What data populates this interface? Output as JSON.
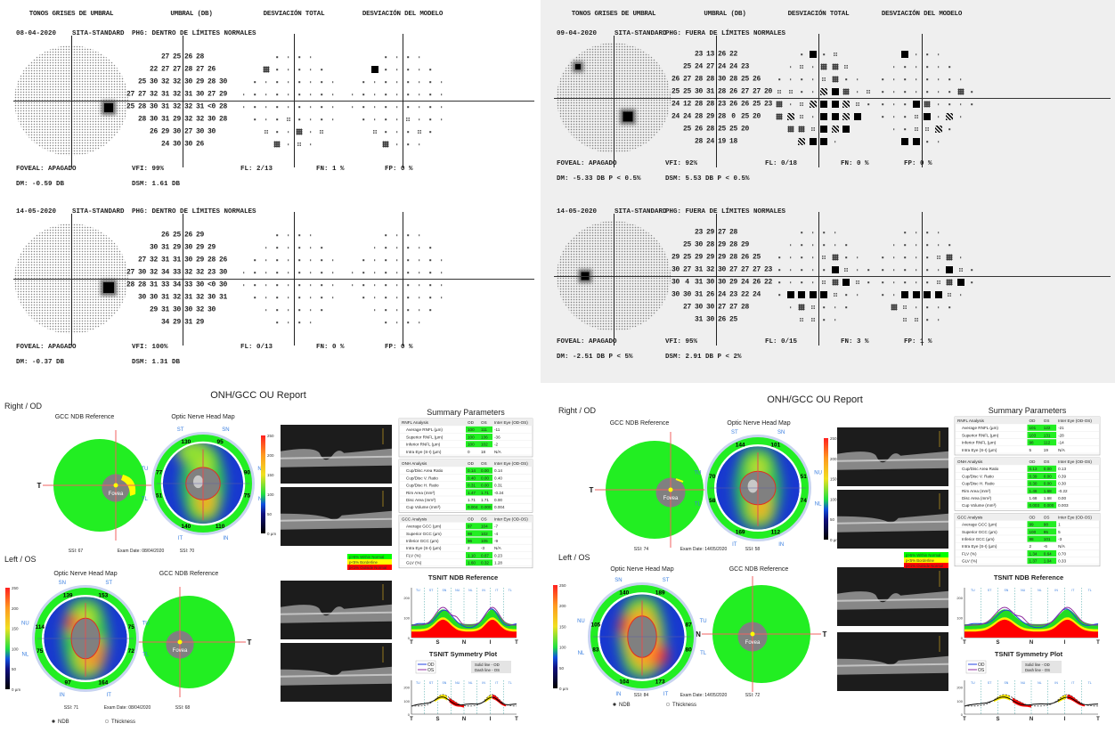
{
  "vf": [
    {
      "headers": {
        "greyscale": "TONOS GRISES DE UMBRAL",
        "threshold": "UMBRAL (DB)",
        "total_dev": "DESVIACIÓN TOTAL",
        "pattern_dev": "DESVIACIÓN DEL MODELO"
      },
      "tests": [
        {
          "date": "08-04-2020",
          "strategy": "SITA-STANDARD",
          "phg": "PHG: DENTRO DE LÍMITES NORMALES",
          "thresholds": [
            [
              "27",
              "25",
              "26",
              "28"
            ],
            [
              "22",
              "27",
              "27",
              "28",
              "27",
              "26"
            ],
            [
              "25",
              "30",
              "32",
              "32",
              "30",
              "29",
              "28",
              "30"
            ],
            [
              "27",
              "27",
              "32",
              "31",
              "32",
              "31",
              "30",
              "27",
              "29"
            ],
            [
              "25",
              "28",
              "30",
              "31",
              "32",
              "32",
              "31",
              "<0",
              "28"
            ],
            [
              "28",
              "30",
              "31",
              "29",
              "32",
              "32",
              "30",
              "28"
            ],
            [
              "26",
              "29",
              "30",
              "27",
              "30",
              "30"
            ],
            [
              "24",
              "30",
              "30",
              "26"
            ]
          ],
          "total_dev": [
            "....",
            "x.....",
            "........",
            ".........",
            ".........",
            "...:....",
            ":..x.:",
            "x.:."
          ],
          "pattern_dev": [
            "....",
            "#.....",
            "........",
            ".........",
            ".........",
            "....:...",
            ":...:.",
            "x..."
          ],
          "foveal": "FOVEAL: APAGADO",
          "dm": "DM: -0.59 DB",
          "vfi": "VFI: 99%",
          "dsm": "DSM: 1.61 DB",
          "fl": "FL: 2/13",
          "fn": "FN: 1 %",
          "fp": "FP: 0 %"
        },
        {
          "date": "14-05-2020",
          "strategy": "SITA-STANDARD",
          "phg": "PHG: DENTRO DE LÍMITES NORMALES",
          "thresholds": [
            [
              "26",
              "25",
              "26",
              "29"
            ],
            [
              "30",
              "31",
              "29",
              "30",
              "29",
              "29"
            ],
            [
              "27",
              "32",
              "31",
              "31",
              "30",
              "29",
              "28",
              "26"
            ],
            [
              "27",
              "30",
              "32",
              "34",
              "33",
              "32",
              "32",
              "23",
              "30"
            ],
            [
              "28",
              "28",
              "31",
              "33",
              "34",
              "33",
              "30",
              "<0",
              "30"
            ],
            [
              "30",
              "30",
              "31",
              "32",
              "31",
              "32",
              "30",
              "31"
            ],
            [
              "29",
              "31",
              "30",
              "30",
              "32",
              "30"
            ],
            [
              "34",
              "29",
              "31",
              "29"
            ]
          ],
          "total_dev": [
            "....",
            "......",
            "........",
            ".........",
            ".........",
            "........",
            "......",
            "...."
          ],
          "pattern_dev": [
            "....",
            "......",
            "........",
            ".........",
            ".........",
            "........",
            "......",
            "...."
          ],
          "foveal": "FOVEAL: APAGADO",
          "dm": "DM: -0.37 DB",
          "vfi": "VFI: 100%",
          "dsm": "DSM: 1.31 DB",
          "fl": "FL: 0/13",
          "fn": "FN: 0 %",
          "fp": "FP: 0 %"
        }
      ]
    },
    {
      "headers": {
        "greyscale": "TONOS GRISES DE UMBRAL",
        "threshold": "UMBRAL (DB)",
        "total_dev": "DESVIACIÓN TOTAL",
        "pattern_dev": "DESVIACIÓN DEL MODELO"
      },
      "tests": [
        {
          "date": "09-04-2020",
          "strategy": "SITA-STANDARD",
          "phg": "PHG: FUERA DE LÍMITES NORMALES",
          "thresholds": [
            [
              "23",
              "13",
              "26",
              "22"
            ],
            [
              "25",
              "24",
              "27",
              "24",
              "24",
              "23"
            ],
            [
              "26",
              "27",
              "28",
              "28",
              "30",
              "28",
              "25",
              "26"
            ],
            [
              "25",
              "25",
              "30",
              "31",
              "28",
              "26",
              "27",
              "27",
              "20"
            ],
            [
              "24",
              "12",
              "28",
              "28",
              "23",
              "26",
              "26",
              "25",
              "23"
            ],
            [
              "24",
              "24",
              "28",
              "29",
              "28",
              "0",
              "25",
              "20"
            ],
            [
              "25",
              "26",
              "28",
              "25",
              "25",
              "20"
            ],
            [
              "28",
              "24",
              "19",
              "18"
            ]
          ],
          "total_dev": [
            ".#.:",
            ".:.xx:",
            "....:x..",
            "::..b#x.:",
            "x.:b##b:.",
            "xb:.##b#",
            "xx:#b#",
            "b##."
          ],
          "pattern_dev": [
            "#...",
            "......",
            "........",
            ".......x.",
            "...#x....",
            "...:#.b.",
            "..::b.",
            "##.."
          ],
          "foveal": "FOVEAL: APAGADO",
          "dm": "DM: -5.33 DB  P < 0.5%",
          "vfi": "VFI: 92%",
          "dsm": "DSM: 5.53 DB  P < 0.5%",
          "fl": "FL: 0/18",
          "fn": "FN: 0 %",
          "fp": "FP: 0 %"
        },
        {
          "date": "14-05-2020",
          "strategy": "SITA-STANDARD",
          "phg": "PHG: FUERA DE LÍMITES NORMALES",
          "thresholds": [
            [
              "23",
              "29",
              "27",
              "28"
            ],
            [
              "25",
              "30",
              "28",
              "29",
              "28",
              "29"
            ],
            [
              "29",
              "25",
              "29",
              "29",
              "29",
              "28",
              "26",
              "25"
            ],
            [
              "30",
              "27",
              "31",
              "32",
              "30",
              "27",
              "27",
              "27",
              "23"
            ],
            [
              "30",
              "4",
              "31",
              "30",
              "30",
              "29",
              "24",
              "26",
              "22"
            ],
            [
              "30",
              "30",
              "31",
              "26",
              "24",
              "23",
              "22",
              "24"
            ],
            [
              "27",
              "30",
              "30",
              "27",
              "27",
              "28"
            ],
            [
              "31",
              "30",
              "26",
              "25"
            ]
          ],
          "total_dev": [
            "....",
            "......",
            "....:x..",
            ".....#:..",
            "....:x#:.",
            ".####:..",
            ".x:...",
            "::.."
          ],
          "pattern_dev": [
            "....",
            "......",
            ".....:x.",
            "......#:.",
            ".....:x#.",
            "..####:.",
            "x:....",
            "::.."
          ],
          "foveal": "FOVEAL: APAGADO",
          "dm": "DM: -2.51 DB  P < 5%",
          "vfi": "VFI: 95%",
          "dsm": "DSM: 2.91 DB  P < 2%",
          "fl": "FL: 0/15",
          "fn": "FN: 3 %",
          "fp": "FP: 1 %"
        }
      ]
    }
  ],
  "oct_common": {
    "title": "ONH/GCC OU Report",
    "right_eye": "Right / OD",
    "left_eye": "Left / OS",
    "gcc_title": "GCC NDB Reference",
    "onh_title": "Optic Nerve Head Map",
    "fovea": "Fovea",
    "t": "T",
    "n": "N",
    "colorbar": [
      "250",
      "200",
      "150",
      "100",
      "50",
      "0 µm"
    ],
    "summary_title": "Summary Parameters",
    "legend": [
      "p>5% Within Normal",
      "p<5% Borderline",
      "p<1% Outside Normal"
    ],
    "legend_colors": [
      "#00ff00",
      "#ffff00",
      "#ff0000"
    ],
    "tsnit_ndb_title": "TSNIT NDB Reference",
    "tsnit_sym_title": "TSNIT Symmetry Plot",
    "tsnit_x": [
      "T",
      "S",
      "N",
      "I",
      "T"
    ],
    "tsnit_y": [
      "0",
      "100",
      "200"
    ],
    "tsnit_sectors": [
      "TU",
      "ST",
      "SN",
      "NU",
      "NL",
      "IN",
      "IT",
      "TL"
    ],
    "sym_legend": [
      "OD",
      "OS"
    ],
    "sym_note": [
      "Solid line - OD",
      "Dash line - OS"
    ],
    "radio_ndb": "NDB",
    "radio_thickness": "Thickness",
    "sector_labels": [
      "ST",
      "SN",
      "NU",
      "NL",
      "IN",
      "IT",
      "TL",
      "TU"
    ]
  },
  "oct": [
    {
      "exam_date": "Exam Date: 08/04/2020",
      "od": {
        "gcc_ssi": "SSI: 67",
        "onh_ssi": "SSI: 70",
        "sectors": [
          "130",
          "95",
          "90",
          "75",
          "110",
          "140",
          "51",
          "77"
        ]
      },
      "os": {
        "gcc_ssi": "SSI: 68",
        "onh_ssi": "SSI: 71",
        "sectors": [
          "153",
          "139",
          "114",
          "75",
          "97",
          "164",
          "72",
          "75"
        ]
      },
      "table": [
        {
          "header": [
            "RNFL Analysis",
            "OD",
            "OS",
            "Inter Eye (OD-OS)"
          ],
          "rows": [
            [
              "Average RNFL (µm)",
              "100",
              "111",
              "-11",
              1
            ],
            [
              "Superior RNFL (µm)",
              "100",
              "136",
              "-36",
              1
            ],
            [
              "Inferior RNFL (µm)",
              "100",
              "102",
              "-2",
              1
            ],
            [
              "Intra Eye (S-I) (µm)",
              "0",
              "18",
              "N/A",
              0
            ]
          ]
        },
        {
          "header": [
            "ONH Analysis",
            "OD",
            "OS",
            "Inter Eye (OD-OS)"
          ],
          "rows": [
            [
              "Cup/Disc Area Ratio",
              "0.14",
              "0.00",
              "0.14",
              1
            ],
            [
              "Cup/Disc V. Ratio",
              "0.40",
              "0.00",
              "0.40",
              1
            ],
            [
              "Cup/Disc H. Ratio",
              "0.31",
              "0.00",
              "0.31",
              1
            ],
            [
              "Rim Area (mm²)",
              "1.47",
              "1.71",
              "-0.24",
              1
            ],
            [
              "Disc Area (mm²)",
              "1.71",
              "1.71",
              "0.00",
              0
            ],
            [
              "Cup Volume (mm³)",
              "0.004",
              "0.000",
              "0.004",
              1
            ]
          ]
        },
        {
          "header": [
            "GCC Analysis",
            "OD",
            "OS",
            "Inter Eye (OD-OS)"
          ],
          "rows": [
            [
              "Average GCC (µm)",
              "97",
              "104",
              "-7",
              1
            ],
            [
              "Superior GCC (µm)",
              "98",
              "102",
              "-4",
              1
            ],
            [
              "Inferior GCC (µm)",
              "96",
              "105",
              "-9",
              1
            ],
            [
              "Intra Eye (S-I) (µm)",
              "2",
              "-3",
              "N/A",
              0
            ],
            [
              "FLV (%)",
              "1.10",
              "0.87",
              "0.23",
              1
            ],
            [
              "GLV (%)",
              "1.60",
              "0.32",
              "1.28",
              1
            ]
          ]
        }
      ]
    },
    {
      "exam_date": "Exam Date: 14/05/2020",
      "od": {
        "gcc_ssi": "SSI: 74",
        "onh_ssi": "SSI: 58",
        "sectors": [
          "144",
          "101",
          "51",
          "74",
          "112",
          "169",
          "58",
          "70"
        ]
      },
      "os": {
        "gcc_ssi": "SSI: 72",
        "onh_ssi": "SSI: 84",
        "sectors": [
          "189",
          "140",
          "105",
          "83",
          "104",
          "173",
          "80",
          "87"
        ]
      },
      "table": [
        {
          "header": [
            "RNFL Analysis",
            "OD",
            "OS",
            "Inter Eye (OD-OS)"
          ],
          "rows": [
            [
              "Average RNFL (µm)",
              "101",
              "122",
              "-21",
              1
            ],
            [
              "Superior RNFL (µm)",
              "103",
              "131",
              "-28",
              1
            ],
            [
              "Inferior RNFL (µm)",
              "98",
              "112",
              "-14",
              1
            ],
            [
              "Intra Eye (S-I) (µm)",
              "5",
              "19",
              "N/A",
              0
            ]
          ]
        },
        {
          "header": [
            "ONH Analysis",
            "OD",
            "OS",
            "Inter Eye (OD-OS)"
          ],
          "rows": [
            [
              "Cup/Disc Area Ratio",
              "0.13",
              "0.00",
              "0.13",
              1
            ],
            [
              "Cup/Disc V. Ratio",
              "0.39",
              "0.00",
              "0.39",
              1
            ],
            [
              "Cup/Disc H. Ratio",
              "0.30",
              "0.00",
              "0.30",
              1
            ],
            [
              "Rim Area (mm²)",
              "1.46",
              "1.68",
              "-0.22",
              1
            ],
            [
              "Disc Area (mm²)",
              "1.68",
              "1.68",
              "0.00",
              0
            ],
            [
              "Cup Volume (mm³)",
              "0.003",
              "0.000",
              "0.003",
              1
            ]
          ]
        },
        {
          "header": [
            "GCC Analysis",
            "OD",
            "OS",
            "Inter Eye (OD-OS)"
          ],
          "rows": [
            [
              "Average GCC (µm)",
              "99",
              "98",
              "1",
              1
            ],
            [
              "Superior GCC (µm)",
              "100",
              "95",
              "5",
              1
            ],
            [
              "Inferior GCC (µm)",
              "98",
              "101",
              "-3",
              1
            ],
            [
              "Intra Eye (S-I) (µm)",
              "2",
              "-6",
              "N/A",
              0
            ],
            [
              "FLV (%)",
              "1.34",
              "0.64",
              "0.70",
              1
            ],
            [
              "GLV (%)",
              "1.37",
              "1.04",
              "0.33",
              1
            ]
          ]
        }
      ]
    }
  ]
}
